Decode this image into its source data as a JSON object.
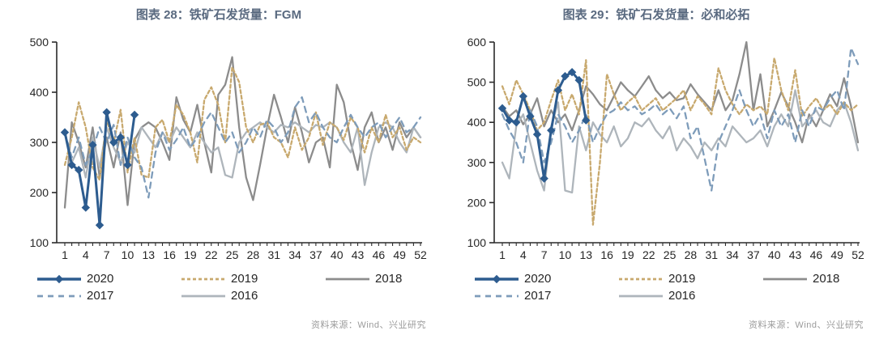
{
  "source_note": "资料来源：Wind、兴业研究",
  "legend": [
    {
      "id": "2020",
      "label": "2020",
      "color": "#2d5c8f",
      "dash": null,
      "marker": "diamond",
      "width": 3
    },
    {
      "id": "2019",
      "label": "2019",
      "color": "#c8a96e",
      "dash": "4 3",
      "marker": null,
      "width": 2.3
    },
    {
      "id": "2018",
      "label": "2018",
      "color": "#8c8c8c",
      "dash": null,
      "marker": null,
      "width": 2.3
    },
    {
      "id": "2017",
      "label": "2017",
      "color": "#7e9cba",
      "dash": "7 6",
      "marker": null,
      "width": 2.3
    },
    {
      "id": "2016",
      "label": "2016",
      "color": "#aeb5bb",
      "dash": null,
      "marker": null,
      "width": 2.3
    }
  ],
  "legend_rows": [
    [
      "2020",
      "2019",
      "2018"
    ],
    [
      "2017",
      "2016"
    ]
  ],
  "chart_data": [
    {
      "type": "line",
      "title": "图表 28：铁矿石发货量：FGM",
      "x_start": 1,
      "x_end": 52,
      "xticks": [
        1,
        4,
        7,
        10,
        13,
        16,
        19,
        22,
        25,
        28,
        31,
        34,
        37,
        40,
        43,
        46,
        49,
        52
      ],
      "ylim": [
        100,
        500
      ],
      "yticks": [
        100,
        200,
        300,
        400,
        500
      ],
      "grid": false,
      "legend_position": "bottom",
      "draw_order": [
        "2018",
        "2016",
        "2019",
        "2017",
        "2020"
      ],
      "series": [
        {
          "name": "2020",
          "x_start": 1,
          "values": [
            320,
            255,
            245,
            170,
            295,
            135,
            360,
            300,
            310,
            255,
            355
          ]
        },
        {
          "name": "2019",
          "x_start": 1,
          "values": [
            255,
            310,
            380,
            330,
            250,
            225,
            345,
            300,
            365,
            240,
            310,
            235,
            230,
            330,
            345,
            300,
            375,
            355,
            320,
            260,
            385,
            410,
            375,
            300,
            450,
            420,
            330,
            300,
            335,
            340,
            310,
            300,
            270,
            330,
            285,
            310,
            360,
            295,
            340,
            330,
            305,
            350,
            330,
            280,
            330,
            300,
            355,
            310,
            330,
            285,
            310,
            300
          ]
        },
        {
          "name": "2018",
          "x_start": 1,
          "values": [
            170,
            340,
            300,
            250,
            330,
            230,
            310,
            250,
            320,
            175,
            305,
            330,
            340,
            330,
            300,
            265,
            390,
            345,
            320,
            375,
            300,
            240,
            395,
            415,
            470,
            330,
            230,
            185,
            255,
            330,
            395,
            350,
            300,
            370,
            320,
            260,
            300,
            310,
            250,
            415,
            380,
            300,
            245,
            330,
            360,
            300,
            330,
            285,
            340,
            310,
            330,
            310
          ]
        },
        {
          "name": "2017",
          "x_start": 1,
          "values": [
            320,
            270,
            310,
            255,
            285,
            330,
            300,
            335,
            255,
            310,
            270,
            250,
            190,
            280,
            320,
            285,
            305,
            330,
            290,
            310,
            340,
            360,
            330,
            300,
            320,
            280,
            300,
            330,
            310,
            345,
            330,
            300,
            320,
            370,
            390,
            340,
            360,
            330,
            310,
            300,
            330,
            355,
            330,
            310,
            330,
            340,
            310,
            330,
            350,
            320,
            330,
            350
          ]
        },
        {
          "name": "2016",
          "x_start": 1,
          "values": [
            320,
            260,
            290,
            230,
            310,
            250,
            330,
            290,
            260,
            300,
            280,
            330,
            310,
            290,
            320,
            300,
            330,
            310,
            290,
            320,
            300,
            280,
            290,
            235,
            230,
            300,
            320,
            330,
            340,
            330,
            320,
            335,
            330,
            340,
            330,
            320,
            335,
            330,
            340,
            330,
            300,
            280,
            330,
            215,
            280,
            330,
            340,
            330,
            300,
            280,
            330,
            310
          ]
        }
      ]
    },
    {
      "type": "line",
      "title": "图表 29：铁矿石发货量：必和必拓",
      "x_start": 1,
      "x_end": 52,
      "xticks": [
        1,
        4,
        7,
        10,
        13,
        16,
        19,
        22,
        25,
        28,
        31,
        34,
        37,
        40,
        43,
        46,
        49,
        52
      ],
      "ylim": [
        100,
        600
      ],
      "yticks": [
        100,
        200,
        300,
        400,
        500,
        600
      ],
      "grid": false,
      "legend_position": "bottom",
      "draw_order": [
        "2018",
        "2016",
        "2019",
        "2017",
        "2020"
      ],
      "series": [
        {
          "name": "2020",
          "x_start": 1,
          "values": [
            435,
            405,
            400,
            465,
            415,
            370,
            260,
            380,
            480,
            515,
            525,
            505,
            405
          ]
        },
        {
          "name": "2019",
          "x_start": 1,
          "values": [
            490,
            445,
            505,
            470,
            430,
            380,
            400,
            455,
            505,
            430,
            470,
            420,
            555,
            145,
            300,
            520,
            470,
            430,
            450,
            465,
            430,
            445,
            460,
            430,
            445,
            460,
            480,
            430,
            465,
            445,
            420,
            535,
            480,
            445,
            420,
            445,
            430,
            440,
            420,
            560,
            480,
            430,
            530,
            415,
            440,
            460,
            430,
            445,
            420,
            450,
            430,
            445
          ]
        },
        {
          "name": "2018",
          "x_start": 1,
          "values": [
            440,
            415,
            430,
            395,
            420,
            460,
            390,
            430,
            400,
            420,
            380,
            430,
            490,
            470,
            445,
            430,
            465,
            500,
            480,
            465,
            490,
            515,
            480,
            460,
            475,
            455,
            460,
            495,
            470,
            450,
            430,
            480,
            430,
            455,
            520,
            600,
            430,
            520,
            390,
            430,
            475,
            440,
            400,
            350,
            420,
            390,
            430,
            470,
            440,
            510,
            440,
            350
          ]
        },
        {
          "name": "2017",
          "x_start": 1,
          "values": [
            420,
            380,
            350,
            300,
            430,
            390,
            300,
            350,
            420,
            390,
            350,
            380,
            420,
            350,
            390,
            420,
            430,
            450,
            430,
            440,
            420,
            430,
            445,
            420,
            435,
            410,
            440,
            360,
            390,
            310,
            230,
            350,
            390,
            430,
            480,
            430,
            390,
            420,
            360,
            430,
            390,
            420,
            350,
            430,
            390,
            440,
            430,
            460,
            480,
            430,
            585,
            545
          ]
        },
        {
          "name": "2016",
          "x_start": 1,
          "values": [
            300,
            260,
            390,
            420,
            350,
            280,
            230,
            390,
            450,
            230,
            225,
            390,
            330,
            400,
            370,
            350,
            390,
            340,
            360,
            400,
            390,
            410,
            380,
            360,
            390,
            330,
            360,
            340,
            310,
            350,
            330,
            360,
            340,
            390,
            370,
            350,
            360,
            380,
            340,
            390,
            420,
            390,
            480,
            390,
            410,
            430,
            400,
            390,
            430,
            450,
            400,
            330
          ]
        }
      ]
    }
  ]
}
